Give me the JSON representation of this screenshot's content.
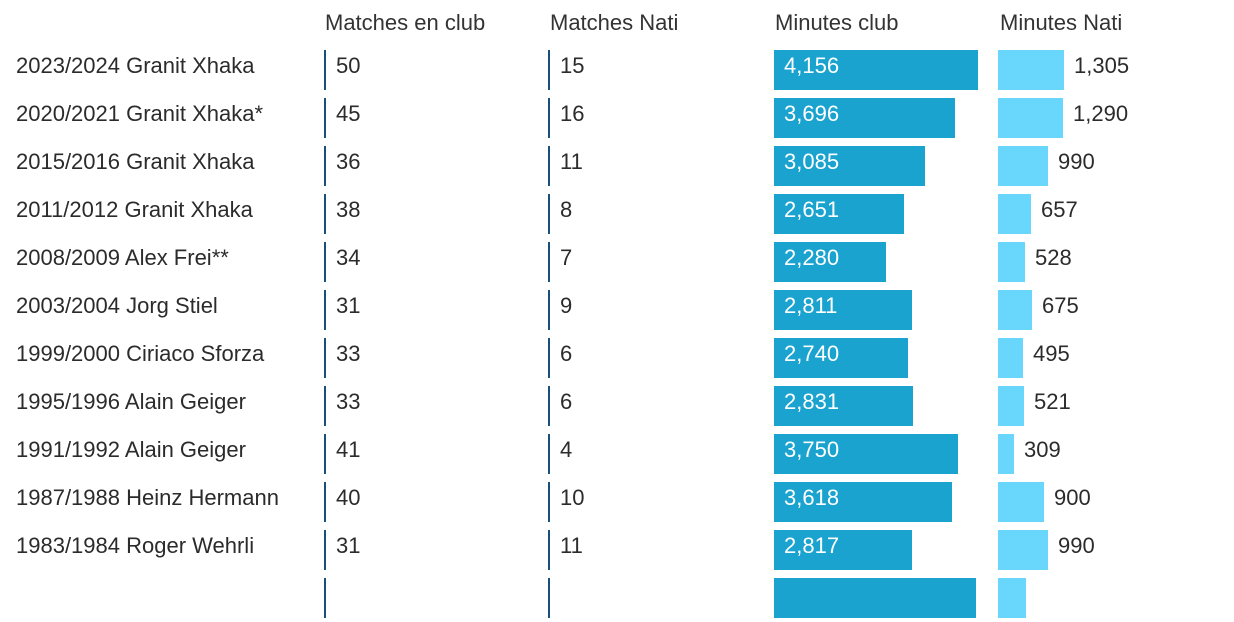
{
  "chart_data": {
    "type": "table",
    "columns": [
      "Matches en club",
      "Matches Nati",
      "Minutes club",
      "Minutes Nati"
    ],
    "rows": [
      {
        "label": "2023/2024 Granit Xhaka",
        "matches_club": 50,
        "matches_nati": 15,
        "minutes_club": 4156,
        "minutes_nati": 1305
      },
      {
        "label": "2020/2021 Granit Xhaka*",
        "matches_club": 45,
        "matches_nati": 16,
        "minutes_club": 3696,
        "minutes_nati": 1290
      },
      {
        "label": "2015/2016 Granit Xhaka",
        "matches_club": 36,
        "matches_nati": 11,
        "minutes_club": 3085,
        "minutes_nati": 990
      },
      {
        "label": "2011/2012 Granit Xhaka",
        "matches_club": 38,
        "matches_nati": 8,
        "minutes_club": 2651,
        "minutes_nati": 657
      },
      {
        "label": "2008/2009 Alex Frei**",
        "matches_club": 34,
        "matches_nati": 7,
        "minutes_club": 2280,
        "minutes_nati": 528
      },
      {
        "label": "2003/2004 Jorg Stiel",
        "matches_club": 31,
        "matches_nati": 9,
        "minutes_club": 2811,
        "minutes_nati": 675
      },
      {
        "label": "1999/2000 Ciriaco Sforza",
        "matches_club": 33,
        "matches_nati": 6,
        "minutes_club": 2740,
        "minutes_nati": 495
      },
      {
        "label": "1995/1996 Alain Geiger",
        "matches_club": 33,
        "matches_nati": 6,
        "minutes_club": 2831,
        "minutes_nati": 521
      },
      {
        "label": "1991/1992 Alain Geiger",
        "matches_club": 41,
        "matches_nati": 4,
        "minutes_club": 3750,
        "minutes_nati": 309
      },
      {
        "label": "1987/1988 Heinz Hermann",
        "matches_club": 40,
        "matches_nati": 10,
        "minutes_club": 3618,
        "minutes_nati": 900
      },
      {
        "label": "1983/1984 Roger Wehrli",
        "matches_club": 31,
        "matches_nati": 11,
        "minutes_club": 2817,
        "minutes_nati": 990
      }
    ],
    "minutes_club_max": 4156,
    "minutes_nati_max": 1305,
    "colors": {
      "club_bar": "#1ba3d0",
      "nati_bar": "#69d6fb",
      "separator": "#1b4f82"
    }
  }
}
